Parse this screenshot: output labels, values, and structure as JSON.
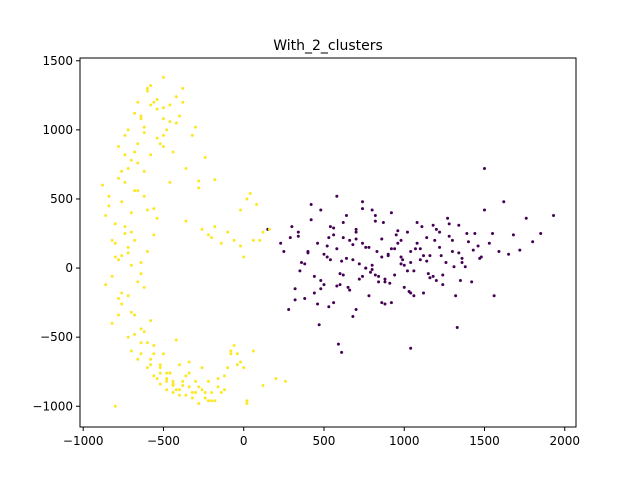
{
  "chart_data": {
    "type": "scatter",
    "title": "With_2_clusters",
    "xlabel": "",
    "ylabel": "",
    "xlim": [
      -1020,
      2070
    ],
    "ylim": [
      -1150,
      1520
    ],
    "xticks": [
      -1000,
      -500,
      0,
      500,
      1000,
      1500,
      2000
    ],
    "xtick_labels": [
      "−1000",
      "−500",
      "0",
      "500",
      "1000",
      "1500",
      "2000"
    ],
    "yticks": [
      -1000,
      -500,
      0,
      500,
      1000,
      1500
    ],
    "ytick_labels": [
      "−1000",
      "−500",
      "0",
      "500",
      "1000",
      "1500"
    ],
    "grid": false,
    "series": [
      {
        "color": "#440154",
        "x": [
          150,
          230,
          290,
          320,
          340,
          360,
          380,
          400,
          420,
          440,
          460,
          480,
          500,
          520,
          540,
          560,
          580,
          600,
          620,
          640,
          660,
          680,
          700,
          720,
          740,
          760,
          780,
          800,
          820,
          840,
          860,
          880,
          900,
          920,
          940,
          960,
          980,
          1000,
          1020,
          1040,
          1060,
          1080,
          1100,
          1120,
          1140,
          1160,
          1180,
          1200,
          1220,
          1240,
          1260,
          1280,
          1300,
          1320,
          1340,
          1360,
          1380,
          1400,
          1420,
          1440,
          1460,
          1480,
          1500,
          1530,
          1560,
          1590,
          1620,
          1650,
          1680,
          1720,
          1760,
          1800,
          1850,
          1930,
          250,
          300,
          350,
          420,
          480,
          530,
          580,
          610,
          650,
          700,
          740,
          790,
          830,
          870,
          910,
          950,
          990,
          1030,
          1070,
          1110,
          1150,
          1190,
          1230,
          1270,
          1310,
          1350,
          1390,
          1430,
          1470,
          320,
          380,
          440,
          500,
          560,
          620,
          680,
          740,
          800,
          860,
          920,
          980,
          1040,
          1100,
          1160,
          1220,
          1280,
          1340,
          480,
          540,
          600,
          660,
          720,
          780,
          840,
          900,
          960,
          1020,
          1080,
          1140,
          1200,
          400,
          460,
          520,
          580,
          640,
          700,
          760,
          820,
          880,
          940,
          1000,
          1060,
          1120,
          1180,
          1240,
          1300,
          1360,
          280,
          340,
          470,
          530,
          590,
          610,
          1040,
          1330,
          1500,
          1550,
          700,
          760,
          820,
          880,
          560,
          620,
          680,
          740,
          800,
          860,
          920,
          980,
          1040
        ],
        "y": [
          280,
          180,
          220,
          -150,
          260,
          40,
          -220,
          120,
          350,
          -60,
          180,
          420,
          -120,
          80,
          300,
          -250,
          140,
          -40,
          220,
          380,
          -160,
          60,
          260,
          -80,
          480,
          150,
          -200,
          20,
          340,
          -100,
          210,
          -260,
          100,
          400,
          -50,
          180,
          30,
          -140,
          260,
          120,
          -20,
          330,
          60,
          -180,
          220,
          90,
          -60,
          280,
          150,
          -120,
          40,
          230,
          120,
          -200,
          310,
          70,
          10,
          190,
          -100,
          250,
          160,
          80,
          420,
          180,
          -200,
          120,
          480,
          100,
          240,
          130,
          360,
          190,
          250,
          380,
          120,
          300,
          -20,
          460,
          -90,
          220,
          520,
          50,
          -140,
          280,
          180,
          -30,
          120,
          330,
          -110,
          240,
          60,
          -170,
          140,
          300,
          -40,
          200,
          90,
          360,
          10,
          -90,
          250,
          130,
          70,
          -230,
          30,
          -180,
          100,
          240,
          -50,
          170,
          430,
          -10,
          80,
          -250,
          200,
          40,
          140,
          -70,
          260,
          320,
          110,
          -150,
          60,
          -120,
          200,
          30,
          150,
          -60,
          90,
          270,
          -20,
          180,
          50,
          -90,
          110,
          -260,
          160,
          -130,
          70,
          210,
          0,
          380,
          -80,
          140,
          20,
          -200,
          90,
          310,
          -50,
          200,
          40,
          -300,
          230,
          -410,
          -280,
          -550,
          -610,
          -580,
          -430,
          720,
          250,
          -300,
          0,
          -50,
          -100,
          290,
          330,
          -350,
          -60,
          420,
          -250,
          140,
          80,
          -180
        ],
        "size": 1.5
      },
      {
        "color": "#fde725",
        "x": [
          -880,
          -860,
          -840,
          -820,
          -800,
          -780,
          -760,
          -740,
          -720,
          -700,
          -860,
          -840,
          -820,
          -800,
          -780,
          -760,
          -740,
          -720,
          -700,
          -680,
          -660,
          -640,
          -820,
          -800,
          -780,
          -760,
          -740,
          -720,
          -700,
          -680,
          -660,
          -640,
          -620,
          -600,
          -580,
          -560,
          -780,
          -760,
          -740,
          -720,
          -700,
          -680,
          -660,
          -640,
          -620,
          -600,
          -580,
          -560,
          -540,
          -520,
          -500,
          -720,
          -700,
          -680,
          -660,
          -640,
          -620,
          -600,
          -580,
          -560,
          -540,
          -520,
          -500,
          -480,
          -460,
          -440,
          -680,
          -660,
          -640,
          -620,
          -600,
          -580,
          -560,
          -540,
          -520,
          -500,
          -480,
          -460,
          -440,
          -420,
          -400,
          -380,
          -360,
          -340,
          -320,
          -300,
          -280,
          -260,
          -240,
          -220,
          -200,
          -180,
          -160,
          -140,
          -120,
          -100,
          -80,
          -60,
          -40,
          -20,
          0,
          20,
          40,
          60,
          80,
          100,
          -640,
          -620,
          -600,
          -580,
          -560,
          -540,
          -520,
          -500,
          -480,
          -460,
          -440,
          -420,
          -400,
          -380,
          -360,
          -340,
          -320,
          -300,
          -280,
          -260,
          -240,
          -220,
          -200,
          -800,
          -780,
          -760,
          -740,
          -720,
          -700,
          -680,
          -660,
          -640,
          -620,
          -600,
          -580,
          -560,
          -540,
          -520,
          -500,
          -480,
          -460,
          -440,
          -420,
          -400,
          -380,
          -360,
          -500,
          -480,
          -460,
          -440,
          -420,
          -400,
          -380,
          -360,
          -340,
          -320,
          -300,
          -280,
          -260,
          -240,
          -220,
          -200,
          -180,
          -160,
          -140,
          -120,
          -100,
          -80,
          -60,
          -40,
          -20,
          0,
          20,
          60,
          120,
          200,
          260,
          -280,
          -180,
          -20,
          20,
          120,
          160
        ],
        "y": [
          600,
          -120,
          450,
          200,
          80,
          650,
          -260,
          300,
          720,
          20,
          380,
          520,
          -60,
          180,
          -220,
          480,
          820,
          150,
          -320,
          560,
          900,
          40,
          -400,
          320,
          880,
          -180,
          620,
          1000,
          260,
          -480,
          760,
          1080,
          -140,
          420,
          1180,
          -560,
          -340,
          700,
          960,
          110,
          -600,
          840,
          1200,
          -40,
          520,
          1280,
          -660,
          240,
          1150,
          -720,
          960,
          -500,
          780,
          1120,
          -100,
          -620,
          1020,
          1300,
          -700,
          430,
          1220,
          -760,
          880,
          -820,
          1060,
          -840,
          200,
          -660,
          1100,
          980,
          -720,
          1320,
          -780,
          360,
          -840,
          1160,
          -880,
          620,
          -900,
          1050,
          -920,
          1200,
          340,
          -860,
          -940,
          1020,
          -980,
          280,
          -900,
          240,
          -960,
          300,
          -860,
          180,
          -780,
          260,
          -620,
          200,
          -700,
          160,
          80,
          -960,
          540,
          200,
          460,
          200,
          -540,
          -460,
          120,
          -380,
          1200,
          -800,
          900,
          -620,
          1000,
          -760,
          840,
          -520,
          1100,
          -850,
          720,
          -680,
          960,
          -900,
          580,
          -720,
          800,
          -960,
          220,
          -1000,
          60,
          90,
          250,
          -200,
          400,
          -340,
          560,
          -440,
          700,
          -540,
          820,
          -620,
          940,
          -700,
          1080,
          -760,
          1180,
          -820,
          1240,
          -880,
          1300,
          -920,
          1380,
          -800,
          -760,
          -850,
          -880,
          -700,
          -820,
          -780,
          -760,
          -900,
          -820,
          -860,
          -880,
          -940,
          -820,
          -900,
          -960,
          -800,
          -900,
          -880,
          -720,
          -600,
          -560,
          -620,
          -680,
          -720,
          -980,
          -600,
          -850,
          -800,
          -820,
          630,
          640,
          420,
          500,
          260,
          280
        ],
        "size": 1.5
      }
    ]
  }
}
